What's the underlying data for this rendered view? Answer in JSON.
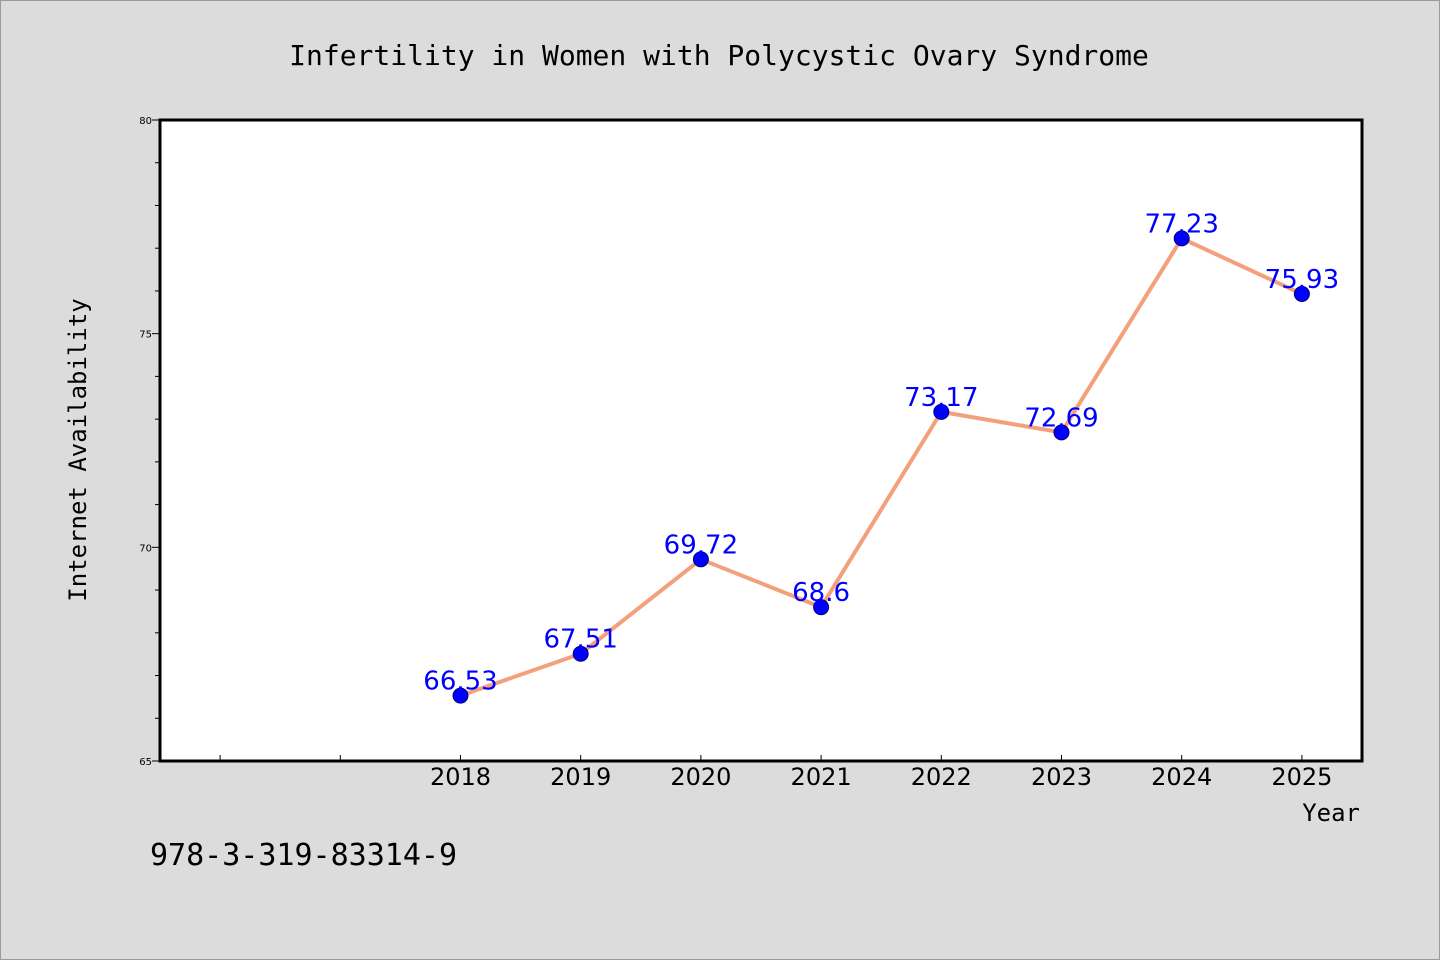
{
  "chart_data": {
    "type": "line",
    "title": "Infertility in Women with Polycystic Ovary Syndrome",
    "xlabel": "Year",
    "ylabel": "Internet Availability",
    "x": [
      "2018",
      "2019",
      "2020",
      "2021",
      "2022",
      "2023",
      "2024",
      "2025"
    ],
    "xlim": [
      2015.5,
      2025.5
    ],
    "series": [
      {
        "values": [
          66.53,
          67.51,
          69.72,
          68.6,
          73.17,
          72.69,
          77.23,
          75.93
        ]
      }
    ],
    "data_labels": [
      "66.53",
      "67.51",
      "69.72",
      "68.6",
      "73.17",
      "72.69",
      "77.23",
      "75.93"
    ],
    "ylim": [
      65,
      80
    ],
    "yticks": [
      "65",
      "70",
      "75",
      "80"
    ],
    "grid": false,
    "line_color": "#f4a07c",
    "marker_color": "#0000ff",
    "label_color": "#0000ff"
  },
  "footer": {
    "isbn": "978-3-319-83314-9"
  }
}
